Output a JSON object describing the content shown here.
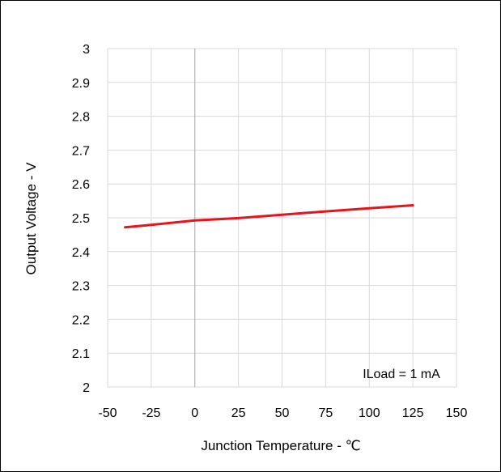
{
  "chart_data": {
    "type": "line",
    "title": "",
    "xlabel": "Junction Temperature - ℃",
    "ylabel": "Output Voltage - V",
    "xlim": [
      -50,
      150
    ],
    "ylim": [
      2,
      3
    ],
    "x_ticks": [
      -50,
      -25,
      0,
      25,
      50,
      75,
      100,
      125,
      150
    ],
    "y_ticks": [
      2,
      2.1,
      2.2,
      2.3,
      2.4,
      2.5,
      2.6,
      2.7,
      2.8,
      2.9,
      3
    ],
    "x_tick_labels": [
      "-50",
      "-25",
      "0",
      "25",
      "50",
      "75",
      "100",
      "125",
      "150"
    ],
    "y_tick_labels": [
      "2",
      "2.1",
      "2.2",
      "2.3",
      "2.4",
      "2.5",
      "2.6",
      "2.7",
      "2.8",
      "2.9",
      "3"
    ],
    "grid": true,
    "series": [
      {
        "x": [
          -40,
          -25,
          0,
          25,
          50,
          75,
          100,
          125
        ],
        "y": [
          2.472,
          2.479,
          2.492,
          2.499,
          2.509,
          2.519,
          2.528,
          2.537
        ],
        "color": "#e8141b"
      }
    ],
    "annotation": "ILoad = 1 mA",
    "grid_color": "#d9d9d9",
    "zero_line_color": "#a6a6a6"
  }
}
